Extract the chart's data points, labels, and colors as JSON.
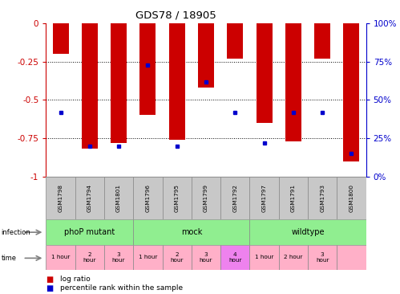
{
  "title": "GDS78 / 18905",
  "samples": [
    "GSM1798",
    "GSM1794",
    "GSM1801",
    "GSM1796",
    "GSM1795",
    "GSM1799",
    "GSM1792",
    "GSM1797",
    "GSM1791",
    "GSM1793",
    "GSM1800"
  ],
  "log_ratios": [
    -0.2,
    -0.82,
    -0.78,
    -0.6,
    -0.76,
    -0.42,
    -0.23,
    -0.65,
    -0.77,
    -0.23,
    -0.9
  ],
  "percentile_ranks": [
    0.42,
    0.2,
    0.2,
    0.73,
    0.2,
    0.62,
    0.42,
    0.22,
    0.42,
    0.42,
    0.15
  ],
  "yticks_left": [
    0,
    -0.25,
    -0.5,
    -0.75,
    -1
  ],
  "yticks_right": [
    100,
    75,
    50,
    25,
    0
  ],
  "bar_color": "#CC0000",
  "dot_color": "#0000CC",
  "tick_color_left": "#CC0000",
  "tick_color_right": "#0000CC",
  "gsm_bg": "#C8C8C8",
  "gsm_edge": "#888888",
  "inf_color": "#90EE90",
  "inf_groups": [
    [
      0,
      3,
      "phoP mutant"
    ],
    [
      3,
      7,
      "mock"
    ],
    [
      7,
      11,
      "wildtype"
    ]
  ],
  "time_data": [
    [
      0,
      "1 hour",
      "#FFB0C8"
    ],
    [
      1,
      "2\nhour",
      "#FFB0C8"
    ],
    [
      2,
      "3\nhour",
      "#FFB0C8"
    ],
    [
      3,
      "1 hour",
      "#FFB0C8"
    ],
    [
      4,
      "2\nhour",
      "#FFB0C8"
    ],
    [
      5,
      "3\nhour",
      "#FFB0C8"
    ],
    [
      6,
      "4\nhour",
      "#EE82EE"
    ],
    [
      7,
      "1 hour",
      "#FFB0C8"
    ],
    [
      8,
      "2 hour",
      "#FFB0C8"
    ],
    [
      9,
      "3\nhour",
      "#FFB0C8"
    ],
    [
      10,
      "",
      "#FFB0C8"
    ]
  ]
}
